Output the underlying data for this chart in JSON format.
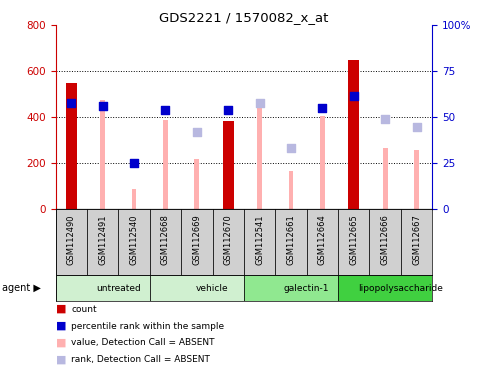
{
  "title": "GDS2221 / 1570082_x_at",
  "samples": [
    "GSM112490",
    "GSM112491",
    "GSM112540",
    "GSM112668",
    "GSM112669",
    "GSM112670",
    "GSM112541",
    "GSM112661",
    "GSM112664",
    "GSM112665",
    "GSM112666",
    "GSM112667"
  ],
  "red_bars": [
    548,
    0,
    0,
    0,
    0,
    383,
    0,
    0,
    0,
    648,
    0,
    0
  ],
  "pink_bars": [
    0,
    473,
    90,
    388,
    220,
    0,
    460,
    168,
    407,
    0,
    268,
    258
  ],
  "blue_squares": [
    462,
    450,
    200,
    430,
    0,
    430,
    0,
    0,
    440,
    490,
    0,
    0
  ],
  "lavender_squares": [
    0,
    0,
    0,
    0,
    335,
    0,
    460,
    268,
    0,
    0,
    390,
    355
  ],
  "groups": [
    {
      "label": "untreated",
      "start": 0,
      "end": 3,
      "color": "#d0f0d0"
    },
    {
      "label": "vehicle",
      "start": 3,
      "end": 6,
      "color": "#d0f0d0"
    },
    {
      "label": "galectin-1",
      "start": 6,
      "end": 9,
      "color": "#90e890"
    },
    {
      "label": "lipopolysaccharide",
      "start": 9,
      "end": 12,
      "color": "#40d040"
    }
  ],
  "ylim_left": [
    0,
    800
  ],
  "ylim_right": [
    0,
    100
  ],
  "yticks_left": [
    0,
    200,
    400,
    600,
    800
  ],
  "yticks_right": [
    0,
    25,
    50,
    75,
    100
  ],
  "yticklabels_right": [
    "0",
    "25",
    "50",
    "75",
    "100%"
  ],
  "left_tick_color": "#cc0000",
  "right_tick_color": "#0000cc",
  "red_bar_width": 0.35,
  "pink_bar_width": 0.15,
  "square_size": 40,
  "box_color": "#d0d0d0",
  "legend_colors": [
    "#cc0000",
    "#0000cc",
    "#ffb0b0",
    "#b8b8e0"
  ],
  "legend_labels": [
    "count",
    "percentile rank within the sample",
    "value, Detection Call = ABSENT",
    "rank, Detection Call = ABSENT"
  ]
}
